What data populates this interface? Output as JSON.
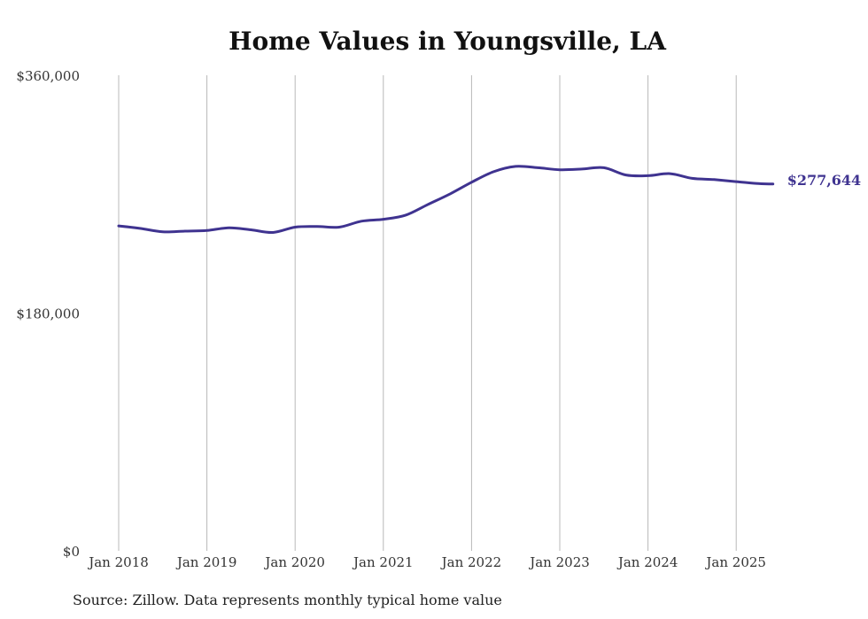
{
  "chart_data": {
    "type": "line",
    "title": "Home Values in Youngsville, LA",
    "source": "Source: Zillow. Data represents monthly typical home value",
    "y_ticks": [
      "$360,000",
      "$180,000",
      "$0"
    ],
    "y_tick_values": [
      360000,
      180000,
      0
    ],
    "ylim": [
      0,
      360000
    ],
    "x_ticks": [
      "Jan 2018",
      "Jan 2019",
      "Jan 2020",
      "Jan 2021",
      "Jan 2022",
      "Jan 2023",
      "Jan 2024",
      "Jan 2025"
    ],
    "grid": "vertical",
    "end_label": "$277,644",
    "series": [
      {
        "color": "#3f3390",
        "points": [
          [
            "2018-01",
            246000
          ],
          [
            "2018-04",
            244000
          ],
          [
            "2018-07",
            241500
          ],
          [
            "2018-10",
            242000
          ],
          [
            "2019-01",
            242500
          ],
          [
            "2019-04",
            244500
          ],
          [
            "2019-07",
            243000
          ],
          [
            "2019-10",
            241000
          ],
          [
            "2020-01",
            245000
          ],
          [
            "2020-04",
            245500
          ],
          [
            "2020-07",
            245000
          ],
          [
            "2020-10",
            249500
          ],
          [
            "2021-01",
            251000
          ],
          [
            "2021-04",
            254000
          ],
          [
            "2021-07",
            262000
          ],
          [
            "2021-10",
            270000
          ],
          [
            "2022-01",
            279000
          ],
          [
            "2022-04",
            287000
          ],
          [
            "2022-07",
            291000
          ],
          [
            "2022-10",
            290000
          ],
          [
            "2023-01",
            288500
          ],
          [
            "2023-04",
            289000
          ],
          [
            "2023-07",
            290000
          ],
          [
            "2023-10",
            284500
          ],
          [
            "2024-01",
            284000
          ],
          [
            "2024-04",
            285500
          ],
          [
            "2024-07",
            282000
          ],
          [
            "2024-10",
            281000
          ],
          [
            "2025-01",
            279500
          ],
          [
            "2025-04",
            278000
          ],
          [
            "2025-06",
            277644
          ]
        ]
      }
    ]
  }
}
